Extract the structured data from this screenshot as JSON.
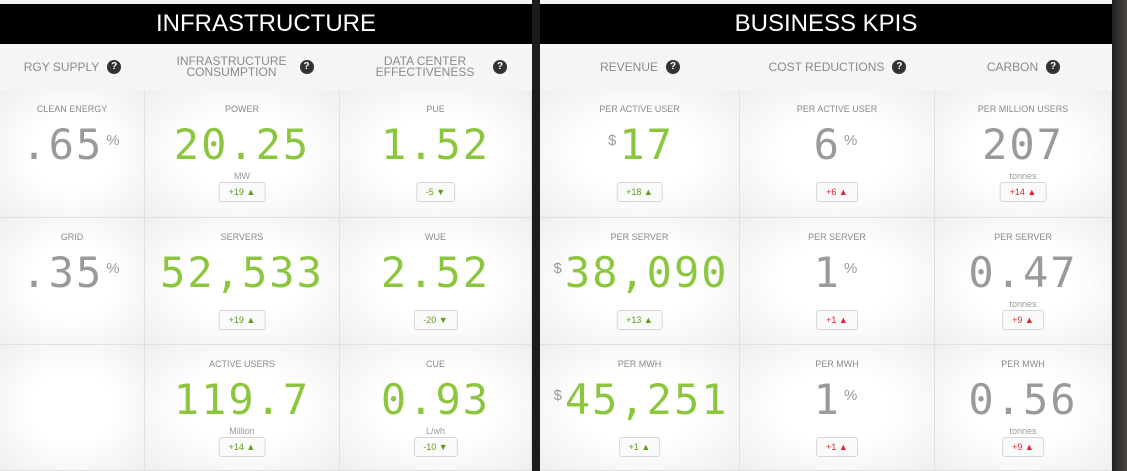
{
  "panels": [
    {
      "title": "INFRASTRUCTURE",
      "columns": [
        {
          "label": "RGY SUPPLY",
          "help": "?",
          "value_color": "#9a9a9a",
          "badge_color": "#5a9e1e"
        },
        {
          "label": "INFRASTRUCTURE CONSUMPTION",
          "help": "?",
          "value_color": "#8cc63e",
          "badge_color": "#5a9e1e"
        },
        {
          "label": "DATA CENTER EFFECTIVENESS",
          "help": "?",
          "value_color": "#8cc63e",
          "badge_color": "#5a9e1e"
        }
      ],
      "rows": [
        [
          {
            "label": "CLEAN ENERGY",
            "value": ".65",
            "suffix": "%"
          },
          {
            "label": "POWER",
            "value": "20.25",
            "unit": "MW",
            "change": "+19 ▲"
          },
          {
            "label": "PUE",
            "value": "1.52",
            "change": "-5 ▼"
          }
        ],
        [
          {
            "label": "GRID",
            "value": ".35",
            "suffix": "%"
          },
          {
            "label": "SERVERS",
            "value": "52,533",
            "change": "+19 ▲"
          },
          {
            "label": "WUE",
            "value": "2.52",
            "change": "-20 ▼"
          }
        ],
        [
          null,
          {
            "label": "ACTIVE USERS",
            "value": "119.7",
            "unit": "Million",
            "change": "+14 ▲"
          },
          {
            "label": "CUE",
            "value": "0.93",
            "unit": "L/wh",
            "change": "-10 ▼"
          }
        ]
      ]
    },
    {
      "title": "BUSINESS KPIS",
      "columns": [
        {
          "label": "REVENUE",
          "help": "?",
          "value_color": "#8cc63e",
          "badge_color": "#5a9e1e"
        },
        {
          "label": "COST REDUCTIONS",
          "help": "?",
          "value_color": "#9a9a9a",
          "badge_color": "#d9282f"
        },
        {
          "label": "CARBON",
          "help": "?",
          "value_color": "#9a9a9a",
          "badge_color": "#d9282f"
        }
      ],
      "rows": [
        [
          {
            "label": "PER ACTIVE USER",
            "prefix": "$",
            "value": "17",
            "change": "+18 ▲"
          },
          {
            "label": "PER ACTIVE USER",
            "value": "6",
            "suffix": "%",
            "change": "+6 ▲"
          },
          {
            "label": "PER MILLION USERS",
            "value": "207",
            "unit": "tonnes",
            "change": "+14 ▲"
          }
        ],
        [
          {
            "label": "PER SERVER",
            "prefix": "$",
            "value": "38,090",
            "change": "+13 ▲"
          },
          {
            "label": "PER SERVER",
            "value": "1",
            "suffix": "%",
            "change": "+1 ▲"
          },
          {
            "label": "PER SERVER",
            "value": "0.47",
            "unit": "tonnes",
            "change": "+9 ▲"
          }
        ],
        [
          {
            "label": "PER MWH",
            "prefix": "$",
            "value": "45,251",
            "change": "+1 ▲"
          },
          {
            "label": "PER MWH",
            "value": "1",
            "suffix": "%",
            "change": "+1 ▲"
          },
          {
            "label": "PER MWH",
            "value": "0.56",
            "unit": "tonnes",
            "change": "+9 ▲"
          }
        ]
      ]
    }
  ]
}
